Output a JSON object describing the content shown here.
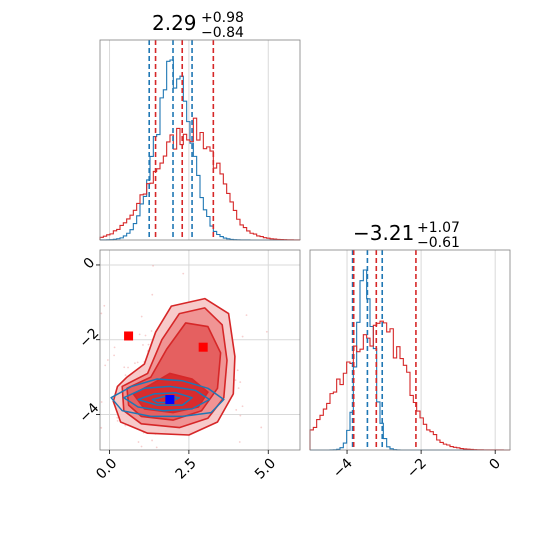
{
  "colors": {
    "blue": "#1f77b4",
    "red": "#d62728",
    "grid": "#d9d9d9",
    "frame": "#808080",
    "marker_red": "#ff0000",
    "marker_blue": "#0000ff"
  },
  "chart_data": {
    "type": "corner",
    "grid": true,
    "panels": [
      {
        "name": "param-1-histogram",
        "type": "histogram",
        "title": {
          "median": "2.29",
          "plus": "+0.98",
          "minus": "−0.84"
        },
        "xlim": [
          -0.3,
          6.0
        ],
        "blue_quantiles": [
          1.25,
          2.0,
          2.6
        ],
        "red_quantiles": [
          1.45,
          2.29,
          3.27
        ],
        "series": [
          {
            "color": "blue",
            "center": 2.0,
            "sigma": 0.55
          },
          {
            "color": "red",
            "center": 2.29,
            "sigma": 0.95
          }
        ]
      },
      {
        "name": "param-2-histogram",
        "type": "histogram",
        "title": {
          "median": "−3.21",
          "plus": "+1.07",
          "minus": "−0.61"
        },
        "xlim": [
          -5.0,
          0.4
        ],
        "x_ticks": [
          -4,
          -2,
          0
        ],
        "x_tick_labels": [
          "−4",
          "−2",
          "0"
        ],
        "blue_quantiles": [
          -3.85,
          -3.45,
          -3.05
        ],
        "red_quantiles": [
          -3.82,
          -3.21,
          -2.14
        ],
        "series": [
          {
            "color": "blue",
            "center": -3.5,
            "sigma": 0.22
          },
          {
            "color": "red",
            "center": -3.4,
            "sigma": 0.85
          }
        ]
      },
      {
        "name": "joint-2d-histogram",
        "type": "contour",
        "xlim": [
          -0.3,
          6.0
        ],
        "ylim": [
          -4.95,
          0.4
        ],
        "x_ticks": [
          0.0,
          2.5,
          5.0
        ],
        "x_tick_labels": [
          "0.0",
          "2.5",
          "5.0"
        ],
        "y_ticks": [
          -4,
          -2,
          0
        ],
        "y_tick_labels": [
          "−4",
          "−2",
          "0"
        ],
        "red_markers": [
          [
            0.6,
            -1.9
          ],
          [
            2.95,
            -2.2
          ]
        ],
        "blue_marker": [
          1.9,
          -3.6
        ],
        "red_contours": [
          [
            [
              0.25,
              -3.25
            ],
            [
              0.55,
              -3.0
            ],
            [
              1.1,
              -2.65
            ],
            [
              1.45,
              -1.8
            ],
            [
              1.95,
              -1.1
            ],
            [
              3.0,
              -0.9
            ],
            [
              3.75,
              -1.3
            ],
            [
              3.95,
              -2.45
            ],
            [
              3.9,
              -3.45
            ],
            [
              3.4,
              -4.2
            ],
            [
              2.5,
              -4.55
            ],
            [
              1.2,
              -4.5
            ],
            [
              0.35,
              -4.2
            ],
            [
              0.12,
              -3.65
            ]
          ],
          [
            [
              0.4,
              -3.25
            ],
            [
              1.2,
              -2.9
            ],
            [
              1.65,
              -2.0
            ],
            [
              2.2,
              -1.3
            ],
            [
              3.0,
              -1.15
            ],
            [
              3.55,
              -1.6
            ],
            [
              3.7,
              -2.55
            ],
            [
              3.6,
              -3.55
            ],
            [
              3.1,
              -4.1
            ],
            [
              2.2,
              -4.35
            ],
            [
              1.0,
              -4.25
            ],
            [
              0.45,
              -3.9
            ]
          ],
          [
            [
              0.55,
              -3.3
            ],
            [
              1.3,
              -3.0
            ],
            [
              1.8,
              -2.25
            ],
            [
              2.4,
              -1.55
            ],
            [
              3.1,
              -1.65
            ],
            [
              3.5,
              -2.35
            ],
            [
              3.4,
              -3.3
            ],
            [
              2.9,
              -3.9
            ],
            [
              2.0,
              -4.15
            ],
            [
              1.0,
              -4.05
            ],
            [
              0.6,
              -3.75
            ]
          ],
          [
            [
              0.75,
              -3.45
            ],
            [
              1.3,
              -3.2
            ],
            [
              1.9,
              -2.9
            ],
            [
              2.6,
              -3.05
            ],
            [
              3.1,
              -3.4
            ],
            [
              2.8,
              -3.8
            ],
            [
              2.0,
              -3.95
            ],
            [
              1.1,
              -3.85
            ]
          ]
        ],
        "blue_contours": [
          [
            [
              0.05,
              -3.55
            ],
            [
              0.7,
              -3.25
            ],
            [
              1.5,
              -3.05
            ],
            [
              2.3,
              -3.1
            ],
            [
              3.1,
              -3.3
            ],
            [
              3.6,
              -3.6
            ],
            [
              3.2,
              -3.95
            ],
            [
              2.3,
              -4.05
            ],
            [
              1.3,
              -4.05
            ],
            [
              0.4,
              -3.9
            ]
          ],
          [
            [
              0.45,
              -3.55
            ],
            [
              1.1,
              -3.3
            ],
            [
              1.9,
              -3.25
            ],
            [
              2.7,
              -3.35
            ],
            [
              3.15,
              -3.6
            ],
            [
              2.6,
              -3.85
            ],
            [
              1.7,
              -3.9
            ],
            [
              0.9,
              -3.8
            ]
          ],
          [
            [
              0.9,
              -3.6
            ],
            [
              1.4,
              -3.45
            ],
            [
              2.1,
              -3.42
            ],
            [
              2.6,
              -3.55
            ],
            [
              2.3,
              -3.75
            ],
            [
              1.5,
              -3.75
            ]
          ],
          [
            [
              1.35,
              -3.6
            ],
            [
              1.8,
              -3.5
            ],
            [
              2.2,
              -3.55
            ],
            [
              1.9,
              -3.68
            ],
            [
              1.5,
              -3.68
            ]
          ]
        ]
      }
    ]
  }
}
